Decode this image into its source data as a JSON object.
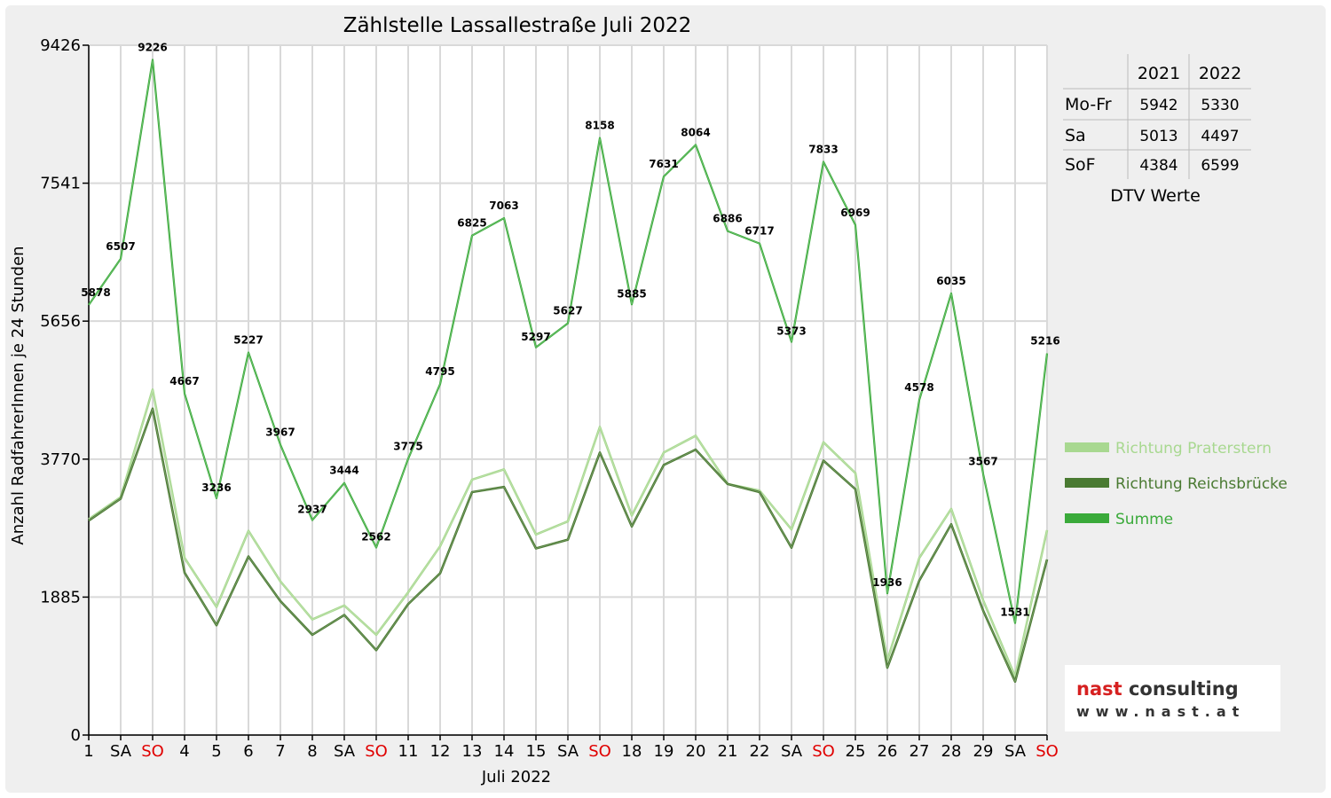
{
  "chart_data": {
    "type": "line",
    "title": "Zählstelle Lassallestraße Juli 2022",
    "xlabel": "Juli 2022",
    "ylabel": "Anzahl RadfahrerInnen je 24 Stunden",
    "ylim": [
      0,
      9426
    ],
    "yticks": [
      "0",
      "1885",
      "3770",
      "5656",
      "7541",
      "9426"
    ],
    "categories": [
      "1",
      "SA",
      "SO",
      "4",
      "5",
      "6",
      "7",
      "8",
      "SA",
      "SO",
      "11",
      "12",
      "13",
      "14",
      "15",
      "SA",
      "SO",
      "18",
      "19",
      "20",
      "21",
      "22",
      "SA",
      "SO",
      "25",
      "26",
      "27",
      "28",
      "29",
      "SA",
      "SO"
    ],
    "sunday_indices": [
      2,
      9,
      16,
      23,
      30
    ],
    "grid": true,
    "legend_position": "right",
    "series": [
      {
        "name": "Richtung Praterstern",
        "color": "#a8d890",
        "values": [
          2950,
          3250,
          4720,
          2420,
          1750,
          2790,
          2100,
          1580,
          1770,
          1370,
          1950,
          2580,
          3490,
          3630,
          2740,
          2920,
          4210,
          3000,
          3860,
          4090,
          3430,
          3340,
          2810,
          4000,
          3580,
          1020,
          2420,
          3090,
          1840,
          800,
          2800
        ]
      },
      {
        "name": "Richtung Reichsbrücke",
        "color": "#4a7a32",
        "values": [
          2930,
          3230,
          4460,
          2220,
          1500,
          2440,
          1830,
          1370,
          1640,
          1160,
          1790,
          2210,
          3320,
          3390,
          2550,
          2670,
          3860,
          2850,
          3690,
          3900,
          3430,
          3320,
          2560,
          3750,
          3360,
          920,
          2110,
          2880,
          1700,
          730,
          2400
        ]
      },
      {
        "name": "Summe",
        "color": "#3aaa3a",
        "values": [
          5878,
          6507,
          9226,
          4667,
          3236,
          5227,
          3967,
          2937,
          3444,
          2562,
          3775,
          4795,
          6825,
          7063,
          5297,
          5627,
          8158,
          5885,
          7631,
          8064,
          6886,
          6717,
          5373,
          7833,
          6969,
          1936,
          4578,
          6035,
          3567,
          1531,
          5216
        ]
      }
    ],
    "data_labels": [
      "5878",
      "6507",
      "9226",
      "4667",
      "3236",
      "5227",
      "3967",
      "2937",
      "3444",
      "2562",
      "3775",
      "4795",
      "6825",
      "7063",
      "5297",
      "5627",
      "8158",
      "5885",
      "7631",
      "8064",
      "6886",
      "6717",
      "5373",
      "7833",
      "6969",
      "1936",
      "4578",
      "6035",
      "3567",
      "1531",
      "5216"
    ]
  },
  "dtv_table": {
    "columns": [
      "2021",
      "2022"
    ],
    "rows": [
      {
        "label": "Mo-Fr",
        "values": [
          "5942",
          "5330"
        ]
      },
      {
        "label": "Sa",
        "values": [
          "5013",
          "4497"
        ]
      },
      {
        "label": "SoF",
        "values": [
          "4384",
          "6599"
        ]
      }
    ],
    "caption": "DTV Werte"
  },
  "logo": {
    "name": "nast consulting",
    "url": "www.nast.at",
    "colors": {
      "nast": "#d62020",
      "consulting": "#333333"
    }
  },
  "colors": {
    "sunday_tick": "#e00000",
    "grid": "#d9d9d9",
    "background": "#efefef"
  }
}
